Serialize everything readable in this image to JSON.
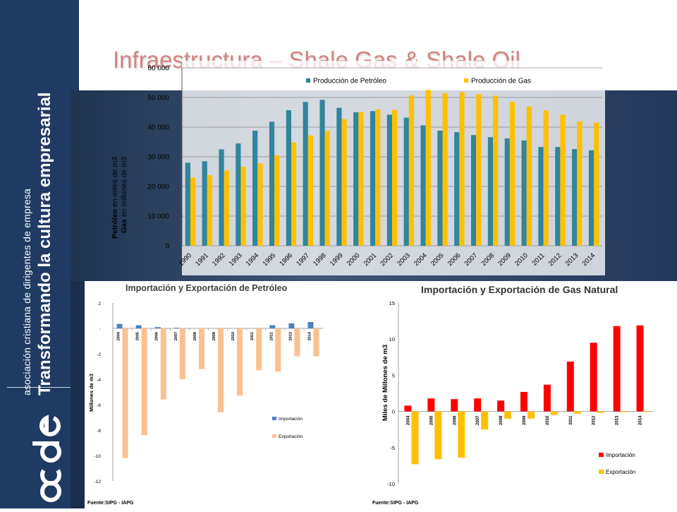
{
  "slide": {
    "title": "Infraestructura – Shale Gas & Shale Oil",
    "sidebar_org": "asociación cristiana de dirigentes de empresa",
    "sidebar_tagline": "Transformando la cultura empresarial",
    "logo_text": "acde",
    "colors": {
      "sidebar": "#1f3b63",
      "title": "#c0504d"
    }
  },
  "chart_data": [
    {
      "type": "bar",
      "title": "",
      "ylabel_bold_1": "Petróleo",
      "ylabel_rest_1": " en miles de m3",
      "ylabel_bold_2": "Gas",
      "ylabel_rest_2": " en millones de m3",
      "categories": [
        "1990",
        "1991",
        "1992",
        "1993",
        "1994",
        "1995",
        "1996",
        "1997",
        "1998",
        "1999",
        "2000",
        "2001",
        "2002",
        "2003",
        "2004",
        "2005",
        "2006",
        "2007",
        "2008",
        "2009",
        "2010",
        "2011",
        "2012",
        "2013",
        "2014"
      ],
      "ylim": [
        0,
        60000
      ],
      "yticks": [
        "0",
        "10 000",
        "20 000",
        "30 000",
        "40 000",
        "50 000",
        "60 000"
      ],
      "legend_position": "top",
      "grid": true,
      "series": [
        {
          "name": "Producción de Petróleo",
          "color": "#31859c",
          "values": [
            28000,
            28500,
            32500,
            34500,
            38800,
            41800,
            45700,
            48500,
            49200,
            46500,
            45000,
            45400,
            44200,
            43200,
            40600,
            38800,
            38300,
            37300,
            36600,
            36200,
            35500,
            33300,
            33300,
            32600,
            32200
          ]
        },
        {
          "name": "Producción  de Gas",
          "color": "#ffc000",
          "values": [
            23000,
            23800,
            25400,
            26600,
            27800,
            30500,
            34800,
            37200,
            38700,
            42700,
            45100,
            46000,
            45800,
            50700,
            52500,
            51500,
            51800,
            51100,
            50600,
            48500,
            47000,
            45600,
            44200,
            41900,
            41500
          ]
        }
      ]
    },
    {
      "type": "bar",
      "title": "Importación y Exportación de Petróleo",
      "ylabel": "Millones de m3",
      "categories": [
        "2004",
        "2005",
        "2006",
        "2007",
        "2008",
        "2009",
        "2010",
        "2011",
        "2012",
        "2013",
        "2014"
      ],
      "ylim": [
        -12,
        2
      ],
      "yticks": [
        "2",
        "-",
        "-2",
        "-4",
        "-6",
        "-8",
        "-10",
        "-12"
      ],
      "legend_position": "right",
      "source": "Fuente:SIPG - IAPG",
      "series": [
        {
          "name": "Importación",
          "color": "#4f81bd",
          "values": [
            0.35,
            0.25,
            0.1,
            0.05,
            0,
            0,
            0,
            0,
            0.25,
            0.4,
            0.5
          ]
        },
        {
          "name": "Exportación",
          "color": "#fac090",
          "values": [
            -10.2,
            -8.4,
            -5.6,
            -4.0,
            -3.2,
            -6.6,
            -5.3,
            -3.3,
            -3.4,
            -2.2,
            -2.2
          ]
        }
      ]
    },
    {
      "type": "bar",
      "title": "Importación y Exportación de Gas Natural",
      "ylabel": "Miles de Millones de m3",
      "categories": [
        "2004",
        "2005",
        "2006",
        "2007",
        "2008",
        "2009",
        "2010",
        "2011",
        "2012",
        "2013",
        "2014"
      ],
      "ylim": [
        -10,
        15
      ],
      "yticks": [
        "15",
        "10",
        "5",
        "0",
        "-5",
        "-10"
      ],
      "legend_position": "right",
      "source": "Fuente:SIPG - IAPG",
      "series": [
        {
          "name": "Importación",
          "color": "#ff0000",
          "values": [
            0.8,
            1.8,
            1.7,
            1.8,
            1.5,
            2.7,
            3.7,
            6.9,
            9.5,
            11.8,
            11.9
          ]
        },
        {
          "name": "Exportación",
          "color": "#ffc000",
          "values": [
            -7.3,
            -6.6,
            -6.4,
            -2.5,
            -1.0,
            -1.0,
            -0.5,
            -0.3,
            -0.2,
            -0.1,
            -0.1
          ]
        }
      ]
    }
  ]
}
